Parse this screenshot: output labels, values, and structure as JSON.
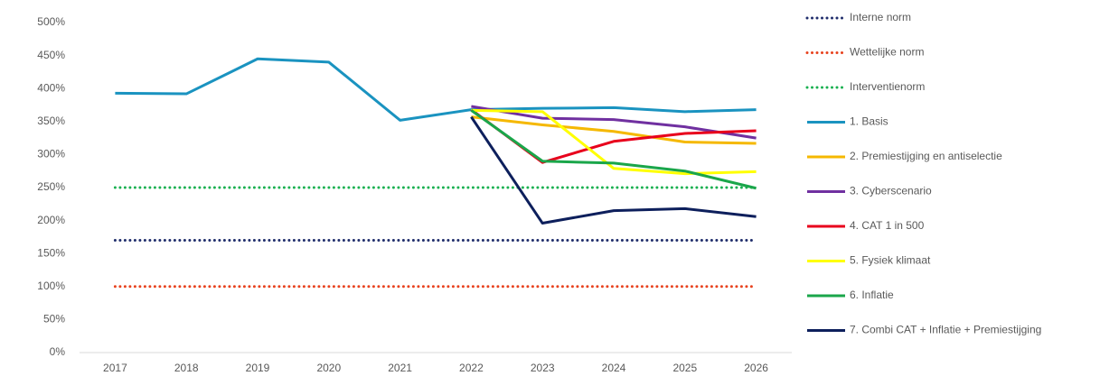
{
  "chart_data": {
    "type": "line",
    "categories": [
      "2017",
      "2018",
      "2019",
      "2020",
      "2021",
      "2022",
      "2023",
      "2024",
      "2025",
      "2026"
    ],
    "ylim": [
      0,
      500
    ],
    "yticks": [
      {
        "value": 0,
        "label": "0%"
      },
      {
        "value": 50,
        "label": "50%"
      },
      {
        "value": 100,
        "label": "100%"
      },
      {
        "value": 150,
        "label": "150%"
      },
      {
        "value": 200,
        "label": "200%"
      },
      {
        "value": 250,
        "label": "250%"
      },
      {
        "value": 300,
        "label": "300%"
      },
      {
        "value": 350,
        "label": "350%"
      },
      {
        "value": 400,
        "label": "400%"
      },
      {
        "value": 450,
        "label": "450%"
      },
      {
        "value": 500,
        "label": "500%"
      }
    ],
    "legend": "right",
    "series": [
      {
        "name": "Interne norm",
        "color": "#1f2d6b",
        "style": "dotted",
        "values": [
          170,
          170,
          170,
          170,
          170,
          170,
          170,
          170,
          170,
          170
        ]
      },
      {
        "name": "Wettelijke norm",
        "color": "#e8421e",
        "style": "dotted",
        "values": [
          100,
          100,
          100,
          100,
          100,
          100,
          100,
          100,
          100,
          100
        ]
      },
      {
        "name": "Interventienorm",
        "color": "#19b050",
        "style": "dotted",
        "values": [
          250,
          250,
          250,
          250,
          250,
          250,
          250,
          250,
          250,
          250
        ]
      },
      {
        "name": "1. Basis",
        "color": "#1a93c0",
        "style": "solid",
        "values": [
          393,
          392,
          445,
          440,
          352,
          368,
          370,
          371,
          365,
          368
        ]
      },
      {
        "name": "2. Premiestijging en antiselectie",
        "color": "#f5b800",
        "style": "solid",
        "values": [
          null,
          null,
          null,
          null,
          null,
          357,
          345,
          335,
          319,
          317
        ]
      },
      {
        "name": "3. Cyberscenario",
        "color": "#7030a0",
        "style": "solid",
        "values": [
          null,
          null,
          null,
          null,
          null,
          373,
          355,
          353,
          342,
          325
        ]
      },
      {
        "name": "4. CAT 1 in 500",
        "color": "#e8001c",
        "style": "solid",
        "values": [
          null,
          null,
          null,
          null,
          null,
          368,
          288,
          320,
          332,
          336
        ]
      },
      {
        "name": "5. Fysiek klimaat",
        "color": "#ffff00",
        "style": "solid",
        "values": [
          null,
          null,
          null,
          null,
          null,
          367,
          365,
          279,
          271,
          274
        ]
      },
      {
        "name": "6. Inflatie",
        "color": "#1aa64a",
        "style": "solid",
        "values": [
          null,
          null,
          null,
          null,
          null,
          367,
          290,
          287,
          275,
          249
        ]
      },
      {
        "name": "7. Combi CAT + Inflatie + Premiestijging",
        "color": "#0d1f5c",
        "style": "solid",
        "values": [
          null,
          null,
          null,
          null,
          null,
          357,
          196,
          215,
          218,
          206
        ]
      }
    ]
  }
}
